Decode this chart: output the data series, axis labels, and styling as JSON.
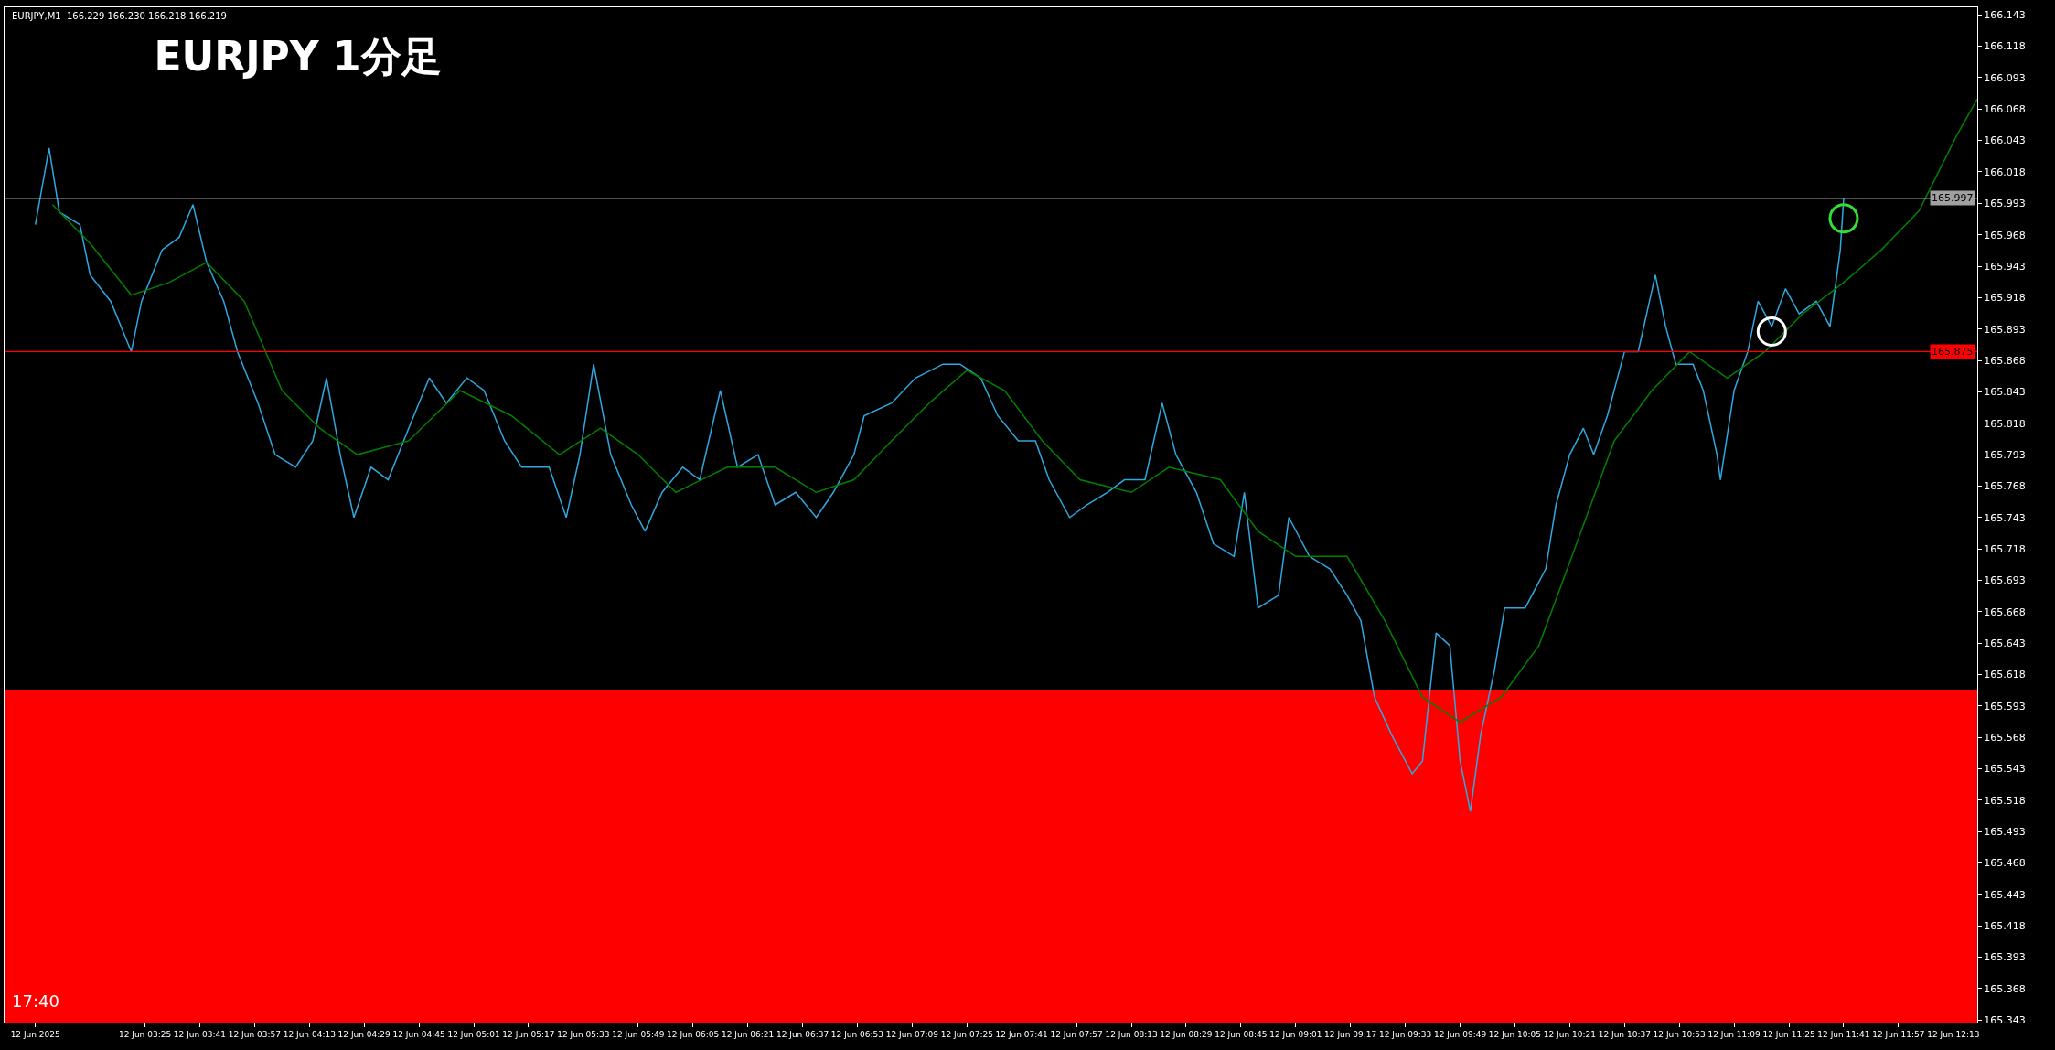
{
  "chart_data": {
    "type": "line",
    "title": "EURJPY 1分足",
    "annotations": [
      "EURJPY,M1  166.229 166.230 166.218 166.219",
      "17:40"
    ],
    "series": [
      {
        "color": "#2fa8e0",
        "x": [
          "2025-06-12T02:53",
          "2025-06-12T02:57",
          "2025-06-12T03:00",
          "2025-06-12T03:06",
          "2025-06-12T03:09",
          "2025-06-12T03:15",
          "2025-06-12T03:21",
          "2025-06-12T03:24",
          "2025-06-12T03:30",
          "2025-06-12T03:35",
          "2025-06-12T03:39",
          "2025-06-12T03:43",
          "2025-06-12T03:48",
          "2025-06-12T03:52",
          "2025-06-12T03:58",
          "2025-06-12T04:03",
          "2025-06-12T04:09",
          "2025-06-12T04:14",
          "2025-06-12T04:18",
          "2025-06-12T04:22",
          "2025-06-12T04:26",
          "2025-06-12T04:31",
          "2025-06-12T04:36",
          "2025-06-12T04:42",
          "2025-06-12T04:48",
          "2025-06-12T04:53",
          "2025-06-12T04:59",
          "2025-06-12T05:04",
          "2025-06-12T05:10",
          "2025-06-12T05:15",
          "2025-06-12T05:23",
          "2025-06-12T05:28",
          "2025-06-12T05:32",
          "2025-06-12T05:36",
          "2025-06-12T05:41",
          "2025-06-12T05:47",
          "2025-06-12T05:51",
          "2025-06-12T05:56",
          "2025-06-12T06:02",
          "2025-06-12T06:07",
          "2025-06-12T06:13",
          "2025-06-12T06:18",
          "2025-06-12T06:24",
          "2025-06-12T06:29",
          "2025-06-12T06:35",
          "2025-06-12T06:41",
          "2025-06-12T06:46",
          "2025-06-12T06:52",
          "2025-06-12T06:55",
          "2025-06-12T07:03",
          "2025-06-12T07:10",
          "2025-06-12T07:18",
          "2025-06-12T07:23",
          "2025-06-12T07:29",
          "2025-06-12T07:34",
          "2025-06-12T07:40",
          "2025-06-12T07:45",
          "2025-06-12T07:49",
          "2025-06-12T07:55",
          "2025-06-12T08:00",
          "2025-06-12T08:06",
          "2025-06-12T08:11",
          "2025-06-12T08:17",
          "2025-06-12T08:22",
          "2025-06-12T08:26",
          "2025-06-12T08:32",
          "2025-06-12T08:37",
          "2025-06-12T08:43",
          "2025-06-12T08:46",
          "2025-06-12T08:50",
          "2025-06-12T08:56",
          "2025-06-12T08:59",
          "2025-06-12T09:05",
          "2025-06-12T09:11",
          "2025-06-12T09:16",
          "2025-06-12T09:20",
          "2025-06-12T09:24",
          "2025-06-12T09:29",
          "2025-06-12T09:35",
          "2025-06-12T09:38",
          "2025-06-12T09:42",
          "2025-06-12T09:46",
          "2025-06-12T09:49",
          "2025-06-12T09:52",
          "2025-06-12T09:55",
          "2025-06-12T09:59",
          "2025-06-12T10:02",
          "2025-06-12T10:08",
          "2025-06-12T10:14",
          "2025-06-12T10:17",
          "2025-06-12T10:21",
          "2025-06-12T10:25",
          "2025-06-12T10:28",
          "2025-06-12T10:32",
          "2025-06-12T10:37",
          "2025-06-12T10:41",
          "2025-06-12T10:46",
          "2025-06-12T10:49",
          "2025-06-12T10:52",
          "2025-06-12T10:57",
          "2025-06-12T11:00",
          "2025-06-12T11:04",
          "2025-06-12T11:05",
          "2025-06-12T11:09",
          "2025-06-12T11:13",
          "2025-06-12T11:16",
          "2025-06-12T11:20",
          "2025-06-12T11:24",
          "2025-06-12T11:28",
          "2025-06-12T11:33",
          "2025-06-12T11:37",
          "2025-06-12T11:40",
          "2025-06-12T11:41"
        ],
        "values": [
          165.976,
          166.037,
          165.986,
          165.976,
          165.936,
          165.915,
          165.875,
          165.915,
          165.956,
          165.966,
          165.992,
          165.946,
          165.915,
          165.875,
          165.834,
          165.793,
          165.783,
          165.804,
          165.854,
          165.793,
          165.743,
          165.783,
          165.773,
          165.814,
          165.854,
          165.834,
          165.854,
          165.844,
          165.804,
          165.783,
          165.783,
          165.743,
          165.793,
          165.865,
          165.793,
          165.753,
          165.732,
          165.763,
          165.783,
          165.773,
          165.844,
          165.783,
          165.793,
          165.753,
          165.763,
          165.743,
          165.763,
          165.793,
          165.824,
          165.834,
          165.854,
          165.865,
          165.865,
          165.854,
          165.824,
          165.804,
          165.804,
          165.773,
          165.743,
          165.753,
          165.763,
          165.773,
          165.773,
          165.834,
          165.793,
          165.763,
          165.722,
          165.712,
          165.763,
          165.671,
          165.681,
          165.743,
          165.712,
          165.702,
          165.681,
          165.661,
          165.6,
          165.57,
          165.539,
          165.549,
          165.651,
          165.641,
          165.549,
          165.509,
          165.57,
          165.621,
          165.671,
          165.671,
          165.702,
          165.753,
          165.793,
          165.814,
          165.793,
          165.824,
          165.875,
          165.875,
          165.936,
          165.895,
          165.865,
          165.865,
          165.844,
          165.793,
          165.773,
          165.844,
          165.875,
          165.915,
          165.895,
          165.925,
          165.905,
          165.915,
          165.895,
          165.956,
          165.997
        ]
      },
      {
        "color": "#008000",
        "x": [
          "2025-06-12T02:58",
          "2025-06-12T03:09",
          "2025-06-12T03:21",
          "2025-06-12T03:32",
          "2025-06-12T03:43",
          "2025-06-12T03:54",
          "2025-06-12T04:05",
          "2025-06-12T04:16",
          "2025-06-12T04:27",
          "2025-06-12T04:42",
          "2025-06-12T04:57",
          "2025-06-12T05:12",
          "2025-06-12T05:26",
          "2025-06-12T05:38",
          "2025-06-12T05:49",
          "2025-06-12T06:00",
          "2025-06-12T06:15",
          "2025-06-12T06:29",
          "2025-06-12T06:41",
          "2025-06-12T06:52",
          "2025-06-12T07:03",
          "2025-06-12T07:14",
          "2025-06-12T07:25",
          "2025-06-12T07:36",
          "2025-06-12T07:47",
          "2025-06-12T07:58",
          "2025-06-12T08:13",
          "2025-06-12T08:24",
          "2025-06-12T08:39",
          "2025-06-12T08:50",
          "2025-06-12T09:01",
          "2025-06-12T09:16",
          "2025-06-12T09:27",
          "2025-06-12T09:38",
          "2025-06-12T09:49",
          "2025-06-12T10:01",
          "2025-06-12T10:12",
          "2025-06-12T10:23",
          "2025-06-12T10:34",
          "2025-06-12T10:45",
          "2025-06-12T10:56",
          "2025-06-12T11:07",
          "2025-06-12T11:18",
          "2025-06-12T11:29",
          "2025-06-12T11:41",
          "2025-06-12T11:52",
          "2025-06-12T12:03",
          "2025-06-12T12:14",
          "2025-06-12T12:20"
        ],
        "values": [
          165.992,
          165.961,
          165.92,
          165.93,
          165.946,
          165.915,
          165.844,
          165.814,
          165.793,
          165.804,
          165.844,
          165.824,
          165.793,
          165.814,
          165.793,
          165.763,
          165.783,
          165.783,
          165.763,
          165.773,
          165.804,
          165.834,
          165.86,
          165.844,
          165.804,
          165.773,
          165.763,
          165.783,
          165.773,
          165.732,
          165.712,
          165.712,
          165.661,
          165.6,
          165.58,
          165.6,
          165.641,
          165.722,
          165.804,
          165.844,
          165.875,
          165.854,
          165.875,
          165.905,
          165.93,
          165.956,
          165.987,
          166.047,
          166.076
        ]
      },
      {
        "type": "scatter",
        "marker": "circle",
        "colors": [
          "#ffffff",
          "#33dd33"
        ],
        "x": [
          "2025-06-12T11:20",
          "2025-06-12T11:41"
        ],
        "values": [
          165.891,
          165.981
        ]
      }
    ],
    "marker": "none",
    "line_style": "solid",
    "grid": false,
    "xlim": [
      "2025-06-12T02:44",
      "2025-06-12T12:20"
    ],
    "xticks": [
      {
        "value": "2025-06-12T02:53",
        "label": "12 Jun 2025"
      },
      {
        "value": "2025-06-12T03:25",
        "label": "12 Jun 03:25"
      },
      {
        "value": "2025-06-12T03:41",
        "label": "12 Jun 03:41"
      },
      {
        "value": "2025-06-12T03:57",
        "label": "12 Jun 03:57"
      },
      {
        "value": "2025-06-12T04:13",
        "label": "12 Jun 04:13"
      },
      {
        "value": "2025-06-12T04:29",
        "label": "12 Jun 04:29"
      },
      {
        "value": "2025-06-12T04:45",
        "label": "12 Jun 04:45"
      },
      {
        "value": "2025-06-12T05:01",
        "label": "12 Jun 05:01"
      },
      {
        "value": "2025-06-12T05:17",
        "label": "12 Jun 05:17"
      },
      {
        "value": "2025-06-12T05:33",
        "label": "12 Jun 05:33"
      },
      {
        "value": "2025-06-12T05:49",
        "label": "12 Jun 05:49"
      },
      {
        "value": "2025-06-12T06:05",
        "label": "12 Jun 06:05"
      },
      {
        "value": "2025-06-12T06:21",
        "label": "12 Jun 06:21"
      },
      {
        "value": "2025-06-12T06:37",
        "label": "12 Jun 06:37"
      },
      {
        "value": "2025-06-12T06:53",
        "label": "12 Jun 06:53"
      },
      {
        "value": "2025-06-12T07:09",
        "label": "12 Jun 07:09"
      },
      {
        "value": "2025-06-12T07:25",
        "label": "12 Jun 07:25"
      },
      {
        "value": "2025-06-12T07:41",
        "label": "12 Jun 07:41"
      },
      {
        "value": "2025-06-12T07:57",
        "label": "12 Jun 07:57"
      },
      {
        "value": "2025-06-12T08:13",
        "label": "12 Jun 08:13"
      },
      {
        "value": "2025-06-12T08:29",
        "label": "12 Jun 08:29"
      },
      {
        "value": "2025-06-12T08:45",
        "label": "12 Jun 08:45"
      },
      {
        "value": "2025-06-12T09:01",
        "label": "12 Jun 09:01"
      },
      {
        "value": "2025-06-12T09:17",
        "label": "12 Jun 09:17"
      },
      {
        "value": "2025-06-12T09:33",
        "label": "12 Jun 09:33"
      },
      {
        "value": "2025-06-12T09:49",
        "label": "12 Jun 09:49"
      },
      {
        "value": "2025-06-12T10:05",
        "label": "12 Jun 10:05"
      },
      {
        "value": "2025-06-12T10:21",
        "label": "12 Jun 10:21"
      },
      {
        "value": "2025-06-12T10:37",
        "label": "12 Jun 10:37"
      },
      {
        "value": "2025-06-12T10:53",
        "label": "12 Jun 10:53"
      },
      {
        "value": "2025-06-12T11:09",
        "label": "12 Jun 11:09"
      },
      {
        "value": "2025-06-12T11:25",
        "label": "12 Jun 11:25"
      },
      {
        "value": "2025-06-12T11:41",
        "label": "12 Jun 11:41"
      },
      {
        "value": "2025-06-12T11:57",
        "label": "12 Jun 11:57"
      },
      {
        "value": "2025-06-12T12:13",
        "label": "12 Jun 12:13"
      }
    ],
    "ylim": [
      165.341,
      166.149
    ],
    "yticks": [
      165.343,
      165.368,
      165.393,
      165.418,
      165.443,
      165.468,
      165.493,
      165.518,
      165.543,
      165.568,
      165.593,
      165.618,
      165.643,
      165.668,
      165.693,
      165.718,
      165.743,
      165.768,
      165.793,
      165.818,
      165.843,
      165.868,
      165.893,
      165.918,
      165.943,
      165.968,
      165.993,
      166.018,
      166.043,
      166.068,
      166.093,
      166.118,
      166.143
    ],
    "ref_lines": [
      {
        "axis": "y",
        "value": 165.997,
        "label": "165.997",
        "color": "#a0a0a0"
      },
      {
        "axis": "y",
        "value": 165.875,
        "label": "165.875",
        "color": "#ff0000"
      }
    ],
    "bands": [
      {
        "axis": "y",
        "from": 165.341,
        "to": 165.606,
        "color": "#ff0000"
      }
    ]
  }
}
